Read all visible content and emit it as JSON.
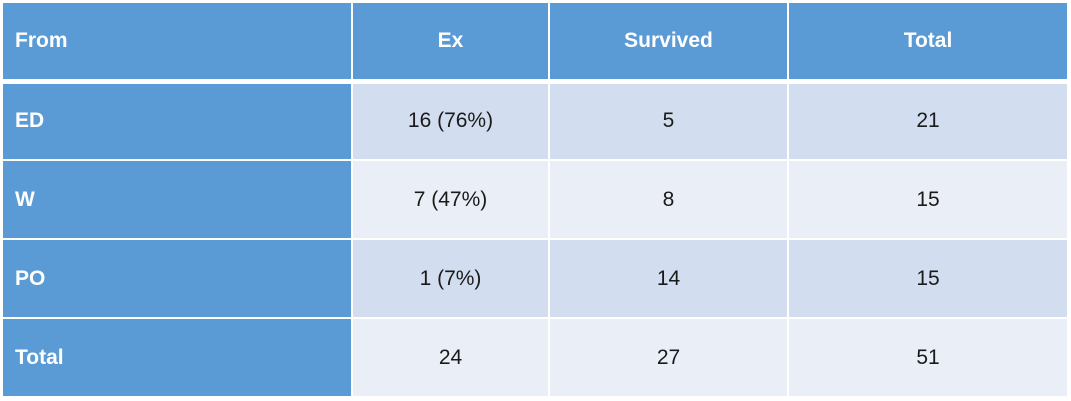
{
  "table": {
    "headers": [
      "From",
      "Ex",
      "Survived",
      "Total"
    ],
    "rows": [
      {
        "from": "ED",
        "ex": "16 (76%)",
        "survived": "5",
        "total": "21"
      },
      {
        "from": "W",
        "ex": "7 (47%)",
        "survived": "8",
        "total": "15"
      },
      {
        "from": "PO",
        "ex": "1 (7%)",
        "survived": "14",
        "total": "15"
      },
      {
        "from": "Total",
        "ex": "24",
        "survived": "27",
        "total": "51"
      }
    ]
  },
  "colors": {
    "header_bg": "#5b9bd5",
    "band_dark": "#d2deef",
    "band_light": "#eaeff7"
  }
}
